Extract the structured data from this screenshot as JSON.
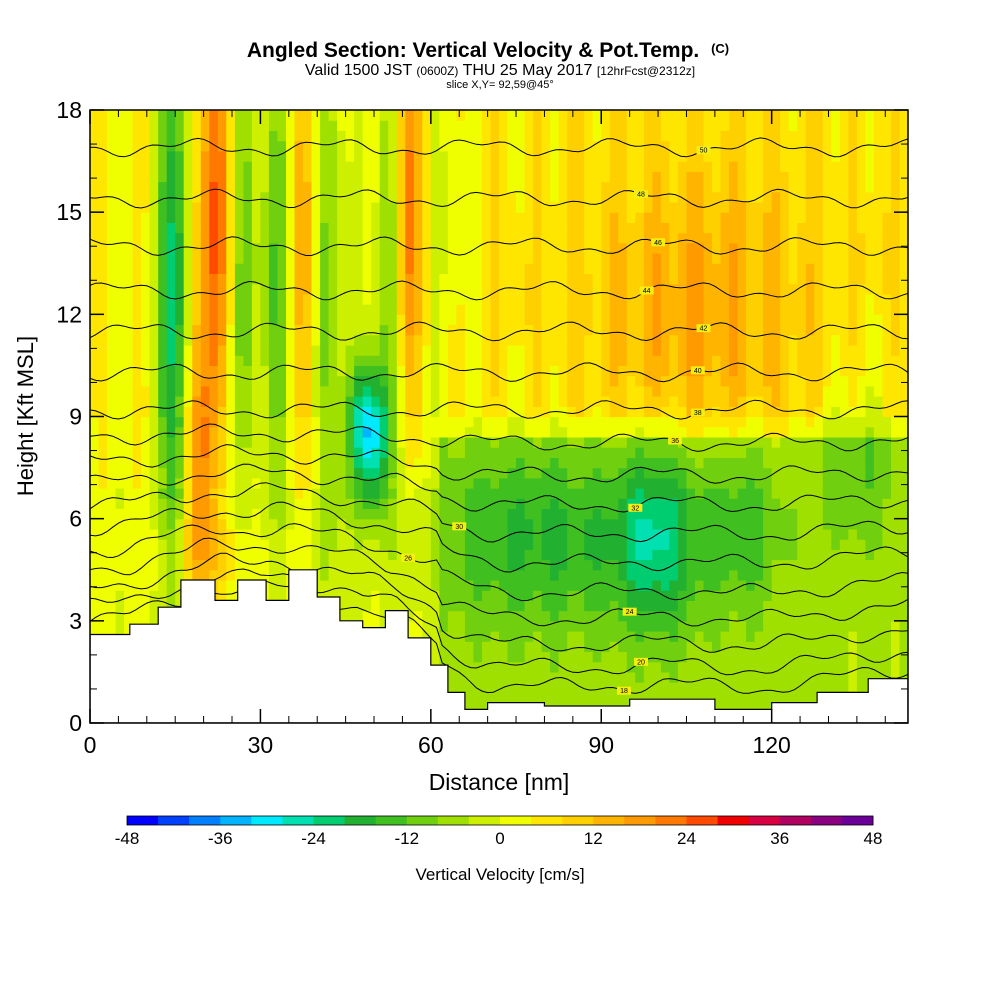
{
  "chart_data": {
    "type": "heatmap",
    "title": "Angled Section: Vertical Velocity & Pot.Temp.",
    "title_unit": "(C)",
    "subtitle_prefix": "Valid 1500 JST",
    "subtitle_utc": "(0600Z)",
    "subtitle_date": "THU 25 May 2017",
    "subtitle_fcst": "[12hrFcst@2312z]",
    "slice_info": "slice X,Y= 92,59@45°",
    "xlabel": "Distance [nm]",
    "ylabel": "Height [Kft MSL]",
    "xlim": [
      0,
      144
    ],
    "ylim": [
      0,
      18
    ],
    "x_ticks": [
      "0",
      "30",
      "60",
      "90",
      "120"
    ],
    "x_tick_values": [
      0,
      30,
      60,
      90,
      120
    ],
    "y_ticks": [
      "0",
      "3",
      "6",
      "9",
      "12",
      "15",
      "18"
    ],
    "y_tick_values": [
      0,
      3,
      6,
      9,
      12,
      15,
      18
    ],
    "colorbar": {
      "label": "Vertical Velocity [cm/s]",
      "tick_labels": [
        "-48",
        "-36",
        "-24",
        "-12",
        "0",
        "12",
        "24",
        "36",
        "48"
      ],
      "tick_values": [
        -48,
        -36,
        -24,
        -12,
        0,
        12,
        24,
        36,
        48
      ],
      "colors": [
        "#0000ff",
        "#0040ff",
        "#0080ff",
        "#00b4ff",
        "#00eaff",
        "#00e0b0",
        "#00cc70",
        "#22b030",
        "#40c020",
        "#70d010",
        "#a0e000",
        "#ccf000",
        "#f0ff00",
        "#ffe600",
        "#ffd000",
        "#ffb400",
        "#ff9a00",
        "#ff7800",
        "#ff4a00",
        "#f00000",
        "#d80040",
        "#b00060",
        "#8a0080",
        "#6a0098"
      ]
    },
    "terrain_profile": {
      "x": [
        0,
        7,
        7,
        12,
        12,
        16,
        16,
        22,
        22,
        26,
        26,
        31,
        31,
        35,
        35,
        40,
        40,
        44,
        44,
        48,
        48,
        52,
        52,
        56,
        56,
        60,
        60,
        63,
        63,
        66,
        66,
        70,
        70,
        80,
        80,
        95,
        95,
        110,
        110,
        120,
        120,
        128,
        128,
        137,
        137,
        144
      ],
      "y": [
        2.6,
        2.6,
        2.9,
        2.9,
        3.4,
        3.4,
        4.2,
        4.2,
        3.6,
        3.6,
        4.2,
        4.2,
        3.6,
        3.6,
        4.5,
        4.5,
        3.7,
        3.7,
        3.0,
        3.0,
        2.8,
        2.8,
        3.3,
        3.3,
        2.5,
        2.5,
        1.7,
        1.7,
        0.9,
        0.9,
        0.4,
        0.4,
        0.6,
        0.6,
        0.5,
        0.5,
        0.7,
        0.7,
        0.4,
        0.4,
        0.6,
        0.6,
        0.9,
        0.9,
        1.3,
        1.3
      ]
    },
    "velocity_features": [
      {
        "x": 15,
        "y": 12.5,
        "sx": 2,
        "sy": 6,
        "v": -28
      },
      {
        "x": 22,
        "y": 15,
        "sx": 3,
        "sy": 4,
        "v": 20
      },
      {
        "x": 19,
        "y": 8,
        "sx": 2,
        "sy": 3,
        "v": 18
      },
      {
        "x": 27,
        "y": 14,
        "sx": 2,
        "sy": 5,
        "v": -16
      },
      {
        "x": 33,
        "y": 13,
        "sx": 2,
        "sy": 5,
        "v": -14
      },
      {
        "x": 38,
        "y": 14,
        "sx": 2,
        "sy": 5,
        "v": 12
      },
      {
        "x": 42,
        "y": 13,
        "sx": 2,
        "sy": 6,
        "v": -14
      },
      {
        "x": 49,
        "y": 8.5,
        "sx": 2.5,
        "sy": 1.5,
        "v": -34
      },
      {
        "x": 52,
        "y": 14,
        "sx": 1.5,
        "sy": 5,
        "v": -12
      },
      {
        "x": 56,
        "y": 15,
        "sx": 1.5,
        "sy": 4,
        "v": 18
      },
      {
        "x": 64,
        "y": 15,
        "sx": 2,
        "sy": 3,
        "v": -8
      },
      {
        "x": 80,
        "y": 5.5,
        "sx": 15,
        "sy": 2,
        "v": -12
      },
      {
        "x": 100,
        "y": 5.5,
        "sx": 5,
        "sy": 2,
        "v": -16
      },
      {
        "x": 115,
        "y": 6,
        "sx": 5,
        "sy": 2,
        "v": -10
      },
      {
        "x": 135,
        "y": 8,
        "sx": 5,
        "sy": 2,
        "v": -8
      },
      {
        "x": 108,
        "y": 12,
        "sx": 14,
        "sy": 3,
        "v": 10
      },
      {
        "x": 20,
        "y": 5,
        "sx": 6,
        "sy": 1,
        "v": 8
      }
    ],
    "isentropes": {
      "levels": [
        18,
        20,
        22,
        24,
        26,
        28,
        30,
        32,
        34,
        36,
        38,
        40,
        42,
        44,
        46,
        48,
        50
      ],
      "base_height": [
        0.7,
        1.3,
        2.0,
        2.8,
        3.6,
        4.5,
        5.4,
        6.3,
        7.2,
        8.2,
        9.2,
        10.3,
        11.5,
        12.7,
        14.0,
        15.4,
        16.9
      ],
      "labels": [
        {
          "text": "18",
          "x": 94,
          "level": 18
        },
        {
          "text": "20",
          "x": 97,
          "level": 20
        },
        {
          "text": "24",
          "x": 95,
          "level": 24
        },
        {
          "text": "26",
          "x": 56,
          "level": 26
        },
        {
          "text": "30",
          "x": 65,
          "level": 30
        },
        {
          "text": "32",
          "x": 96,
          "level": 32
        },
        {
          "text": "36",
          "x": 103,
          "level": 36
        },
        {
          "text": "38",
          "x": 107,
          "level": 38
        },
        {
          "text": "40",
          "x": 107,
          "level": 40
        },
        {
          "text": "42",
          "x": 108,
          "level": 42
        },
        {
          "text": "44",
          "x": 98,
          "level": 44
        },
        {
          "text": "46",
          "x": 100,
          "level": 46
        },
        {
          "text": "48",
          "x": 97,
          "level": 48
        },
        {
          "text": "50",
          "x": 108,
          "level": 50
        }
      ]
    }
  }
}
